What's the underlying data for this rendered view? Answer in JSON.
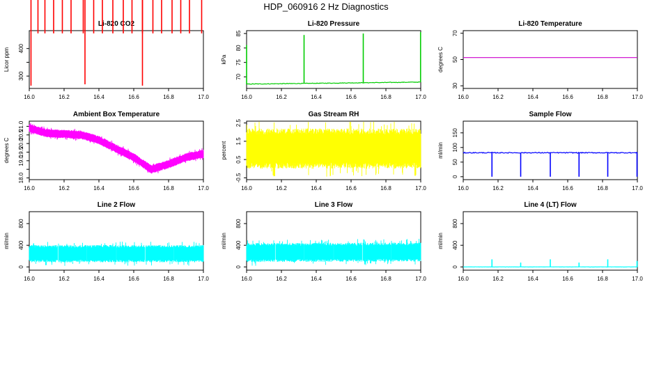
{
  "figure": {
    "title": "HDP_060916  2 Hz Diagnostics"
  },
  "chart_data": [
    {
      "type": "line",
      "title": "Li-820 CO2",
      "ylabel": "Licor ppm",
      "xlim": [
        16.0,
        17.0
      ],
      "ylim": [
        255,
        465
      ],
      "xticks": [
        16.0,
        16.2,
        16.4,
        16.6,
        16.8,
        17.0
      ],
      "xtick_labels": [
        "16.0",
        "16.2",
        "16.4",
        "16.6",
        "16.8",
        "17.0"
      ],
      "yticks": [
        300,
        350,
        400
      ],
      "ytick_labels": [
        "300",
        "",
        "400"
      ],
      "color": "#ff0000",
      "baseline": 345,
      "noise": 4,
      "spikes": [
        [
          16.05,
          455
        ],
        [
          16.09,
          455
        ],
        [
          16.14,
          455
        ],
        [
          16.19,
          455
        ],
        [
          16.24,
          455
        ],
        [
          16.31,
          455
        ],
        [
          16.37,
          455
        ],
        [
          16.42,
          455
        ],
        [
          16.48,
          455
        ],
        [
          16.54,
          455
        ],
        [
          16.59,
          455
        ],
        [
          16.65,
          455
        ],
        [
          16.71,
          455
        ],
        [
          16.76,
          455
        ],
        [
          16.82,
          455
        ],
        [
          16.87,
          455
        ],
        [
          16.92,
          455
        ],
        [
          16.99,
          455
        ],
        [
          16.01,
          265
        ],
        [
          16.32,
          270
        ],
        [
          16.65,
          265
        ]
      ]
    },
    {
      "type": "line",
      "title": "Li-820 Pressure",
      "ylabel": "kPa",
      "xlim": [
        16.0,
        17.0
      ],
      "ylim": [
        66,
        86
      ],
      "xticks": [
        16.0,
        16.2,
        16.4,
        16.6,
        16.8,
        17.0
      ],
      "xtick_labels": [
        "16.0",
        "16.2",
        "16.4",
        "16.6",
        "16.8",
        "17.0"
      ],
      "yticks": [
        70,
        75,
        80,
        85
      ],
      "ytick_labels": [
        "70",
        "75",
        "80",
        "85"
      ],
      "color": "#00cc00",
      "start": 67.5,
      "end": 68.2,
      "noise": 0.1,
      "spikes": [
        [
          16.0,
          81
        ],
        [
          16.33,
          84.5
        ],
        [
          16.67,
          85
        ],
        [
          16.999,
          85.5
        ]
      ]
    },
    {
      "type": "line",
      "title": "Li-820 Temperature",
      "ylabel": "degrees C",
      "xlim": [
        16.0,
        17.0
      ],
      "ylim": [
        28,
        72
      ],
      "xticks": [
        16.0,
        16.2,
        16.4,
        16.6,
        16.8,
        17.0
      ],
      "xtick_labels": [
        "16.0",
        "16.2",
        "16.4",
        "16.6",
        "16.8",
        "17.0"
      ],
      "yticks": [
        30,
        50,
        70
      ],
      "ytick_labels": [
        "30",
        "50",
        "70"
      ],
      "color": "#cc00cc",
      "start": 51.5,
      "end": 51.5,
      "noise": 0,
      "spikes": []
    },
    {
      "type": "area",
      "title": "Ambient Box Temperature",
      "ylabel": "degrees C",
      "xlim": [
        16.0,
        17.0
      ],
      "ylim": [
        17.9,
        21.3
      ],
      "xticks": [
        16.0,
        16.2,
        16.4,
        16.6,
        16.8,
        17.0
      ],
      "xtick_labels": [
        "16.0",
        "16.2",
        "16.4",
        "16.6",
        "16.8",
        "17.0"
      ],
      "yticks": [
        18.0,
        18.5,
        19.0,
        19.5,
        20.0,
        20.5,
        21.0
      ],
      "ytick_labels": [
        "18.0",
        "",
        "19.0",
        "19.5",
        "20.0",
        "20.5",
        "21.0"
      ],
      "color": "#ff00ff",
      "centerline": [
        [
          16.0,
          20.9
        ],
        [
          16.1,
          20.6
        ],
        [
          16.2,
          20.55
        ],
        [
          16.3,
          20.5
        ],
        [
          16.4,
          20.2
        ],
        [
          16.5,
          19.7
        ],
        [
          16.6,
          19.2
        ],
        [
          16.7,
          18.5
        ],
        [
          16.8,
          18.8
        ],
        [
          16.9,
          19.2
        ],
        [
          17.0,
          19.4
        ]
      ],
      "halfwidth": 0.25
    },
    {
      "type": "area",
      "title": "Gas Stream RH",
      "ylabel": "percent",
      "xlim": [
        16.0,
        17.0
      ],
      "ylim": [
        -0.6,
        2.6
      ],
      "xticks": [
        16.0,
        16.2,
        16.4,
        16.6,
        16.8,
        17.0
      ],
      "xtick_labels": [
        "16.0",
        "16.2",
        "16.4",
        "16.6",
        "16.8",
        "17.0"
      ],
      "yticks": [
        -0.5,
        0.5,
        1.5,
        2.5
      ],
      "ytick_labels": [
        "-0.5",
        "0.5",
        "1.5",
        "2.5"
      ],
      "color": "#ffff00",
      "centerline": [
        [
          16.0,
          1.1
        ],
        [
          17.0,
          1.1
        ]
      ],
      "halfwidth": 1.1
    },
    {
      "type": "line",
      "title": "Sample Flow",
      "ylabel": "ml/min",
      "xlim": [
        16.0,
        17.0
      ],
      "ylim": [
        -10,
        190
      ],
      "xticks": [
        16.0,
        16.2,
        16.4,
        16.6,
        16.8,
        17.0
      ],
      "xtick_labels": [
        "16.0",
        "16.2",
        "16.4",
        "16.6",
        "16.8",
        "17.0"
      ],
      "yticks": [
        0,
        50,
        100,
        150
      ],
      "ytick_labels": [
        "0",
        "50",
        "100",
        "150"
      ],
      "color": "#0000ff",
      "start": 82,
      "end": 82,
      "noise": 1.5,
      "spikes": [
        [
          16.165,
          0
        ],
        [
          16.33,
          0
        ],
        [
          16.5,
          0
        ],
        [
          16.665,
          0
        ],
        [
          16.83,
          0
        ],
        [
          16.998,
          0
        ]
      ]
    },
    {
      "type": "area",
      "title": "Line 2 Flow",
      "ylabel": "ml/min",
      "xlim": [
        16.0,
        17.0
      ],
      "ylim": [
        -60,
        1020
      ],
      "xticks": [
        16.0,
        16.2,
        16.4,
        16.6,
        16.8,
        17.0
      ],
      "xtick_labels": [
        "16.0",
        "16.2",
        "16.4",
        "16.6",
        "16.8",
        "17.0"
      ],
      "yticks": [
        0,
        400,
        800
      ],
      "ytick_labels": [
        "0",
        "400",
        "800"
      ],
      "color": "#00ffff",
      "centerline": [
        [
          16.0,
          245
        ],
        [
          17.0,
          245
        ]
      ],
      "halfwidth": 160,
      "gaps": [
        16.165,
        16.33,
        16.5,
        16.665,
        16.83
      ]
    },
    {
      "type": "area",
      "title": "Line 3 Flow",
      "ylabel": "ml/min",
      "xlim": [
        16.0,
        17.0
      ],
      "ylim": [
        -60,
        1020
      ],
      "xticks": [
        16.0,
        16.2,
        16.4,
        16.6,
        16.8,
        17.0
      ],
      "xtick_labels": [
        "16.0",
        "16.2",
        "16.4",
        "16.6",
        "16.8",
        "17.0"
      ],
      "yticks": [
        0,
        400,
        800
      ],
      "ytick_labels": [
        "0",
        "400",
        "800"
      ],
      "color": "#00ffff",
      "centerline": [
        [
          16.0,
          265
        ],
        [
          17.0,
          275
        ]
      ],
      "halfwidth": 175,
      "gaps": [
        16.165,
        16.33,
        16.5,
        16.665,
        16.83
      ]
    },
    {
      "type": "line",
      "title": "Line 4 (LT) Flow",
      "ylabel": "ml/min",
      "xlim": [
        16.0,
        17.0
      ],
      "ylim": [
        -60,
        1020
      ],
      "xticks": [
        16.0,
        16.2,
        16.4,
        16.6,
        16.8,
        17.0
      ],
      "xtick_labels": [
        "16.0",
        "16.2",
        "16.4",
        "16.6",
        "16.8",
        "17.0"
      ],
      "yticks": [
        0,
        400,
        800
      ],
      "ytick_labels": [
        "0",
        "400",
        "800"
      ],
      "color": "#00ffff",
      "start": 0,
      "end": 0,
      "noise": 2,
      "spikes": [
        [
          16.165,
          140
        ],
        [
          16.33,
          80
        ],
        [
          16.5,
          140
        ],
        [
          16.665,
          80
        ],
        [
          16.83,
          140
        ],
        [
          16.998,
          110
        ]
      ]
    }
  ]
}
